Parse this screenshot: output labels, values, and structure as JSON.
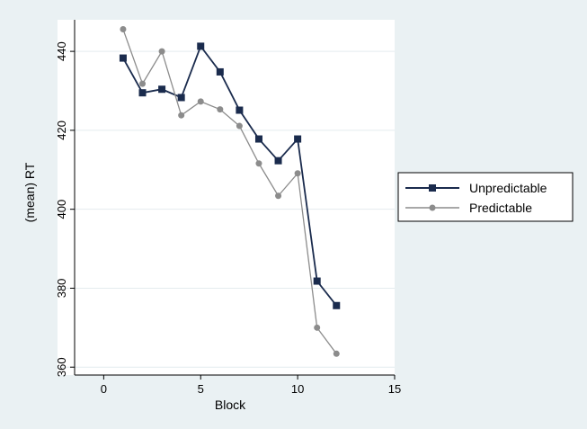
{
  "chart_data": {
    "type": "line",
    "xlabel": "Block",
    "ylabel": "(mean) RT",
    "xlim": [
      -1.5,
      15
    ],
    "ylim": [
      358,
      448
    ],
    "xticks": [
      0,
      5,
      10,
      15
    ],
    "yticks": [
      360,
      380,
      400,
      420,
      440
    ],
    "grid": "horizontal",
    "legend_position": "right",
    "x": [
      1,
      2,
      3,
      4,
      5,
      6,
      7,
      8,
      9,
      10,
      11,
      12
    ],
    "series": [
      {
        "name": "Unpredictable",
        "color": "#1a2b4d",
        "marker": "square",
        "values": [
          438.3,
          429.5,
          430.4,
          428.3,
          441.3,
          434.8,
          425.1,
          417.8,
          412.3,
          417.8,
          381.8,
          375.6
        ]
      },
      {
        "name": "Predictable",
        "color": "#8c8c8c",
        "marker": "circle",
        "values": [
          445.6,
          431.8,
          440.0,
          423.8,
          427.3,
          425.3,
          421.1,
          411.6,
          403.4,
          409.1,
          370.0,
          363.4
        ]
      }
    ]
  }
}
